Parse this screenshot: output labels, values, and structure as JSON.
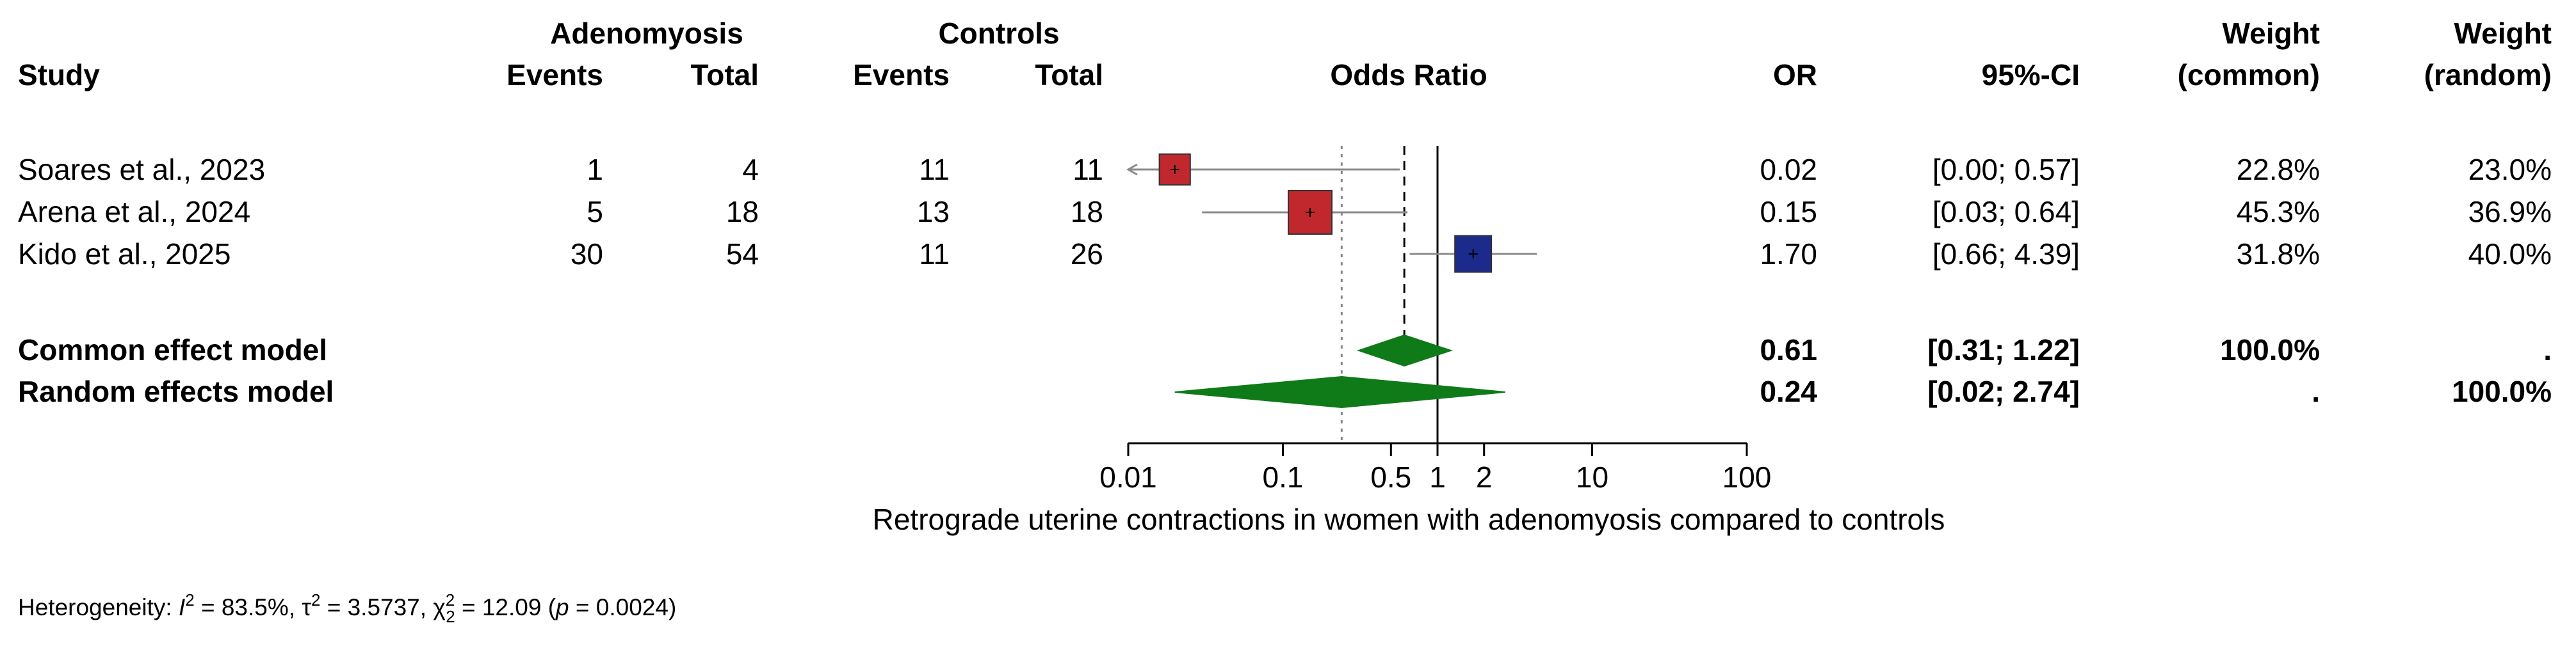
{
  "chart_data": {
    "type": "forest",
    "title": "",
    "xlabel": "Retrograde uterine contractions in women with adenomyosis compared to controls",
    "scale": "log",
    "xlim": [
      0.01,
      100
    ],
    "x_ticks": [
      0.01,
      0.1,
      0.5,
      1,
      2,
      10,
      100
    ],
    "x_tick_labels": [
      "0.01",
      "0.1",
      "0.5",
      "1",
      "2",
      "10",
      "100"
    ],
    "headers": {
      "study": "Study",
      "group1": "Adenomyosis",
      "group2": "Controls",
      "events": "Events",
      "total": "Total",
      "plot": "Odds Ratio",
      "or": "OR",
      "ci": "95%-CI",
      "weight": "Weight",
      "common": "(common)",
      "random": "(random)"
    },
    "studies": [
      {
        "name": "Soares et al., 2023",
        "e1": "1",
        "n1": "4",
        "e2": "11",
        "n2": "11",
        "or": 0.02,
        "lo": 0.00069,
        "hi": 0.57,
        "or_text": "0.02",
        "ci_text": "[0.00; 0.57]",
        "w_common": "22.8%",
        "w_random": "23.0%",
        "weight": 22.8,
        "color": "#c0282d",
        "arrow_left": true
      },
      {
        "name": "Arena et al., 2024",
        "e1": "5",
        "n1": "18",
        "e2": "13",
        "n2": "18",
        "or": 0.15,
        "lo": 0.03,
        "hi": 0.64,
        "or_text": "0.15",
        "ci_text": "[0.03; 0.64]",
        "w_common": "45.3%",
        "w_random": "36.9%",
        "weight": 45.3,
        "color": "#c0282d",
        "arrow_left": false
      },
      {
        "name": "Kido et al., 2025",
        "e1": "30",
        "n1": "54",
        "e2": "11",
        "n2": "26",
        "or": 1.7,
        "lo": 0.66,
        "hi": 4.39,
        "or_text": "1.70",
        "ci_text": "[0.66; 4.39]",
        "w_common": "31.8%",
        "w_random": "40.0%",
        "weight": 31.8,
        "color": "#1c2a8c",
        "arrow_left": false
      }
    ],
    "models": [
      {
        "name": "Common effect model",
        "est": 0.61,
        "lo": 0.31,
        "hi": 1.22,
        "or_text": "0.61",
        "ci_text": "[0.31; 1.22]",
        "w_common": "100.0%",
        "w_random": "."
      },
      {
        "name": "Random effects model",
        "est": 0.24,
        "lo": 0.02,
        "hi": 2.74,
        "or_text": "0.24",
        "ci_text": "[0.02; 2.74]",
        "w_common": ".",
        "w_random": "100.0%"
      }
    ],
    "heterogeneity": {
      "prefix": "Heterogeneity: ",
      "i2_symbol": "I",
      "i2_value": " = 83.5%, ",
      "tau2": "τ",
      "tau2_value": " = 3.5737, ",
      "chi2": "χ",
      "chi2_df": "2",
      "chi2_value": " = 12.09 (",
      "p_symbol": "p",
      "p_value": " = 0.0024)"
    },
    "colors": {
      "diamond": "#0f7a18",
      "ci_line": "#8a8a8a",
      "reference": "#000000"
    }
  }
}
